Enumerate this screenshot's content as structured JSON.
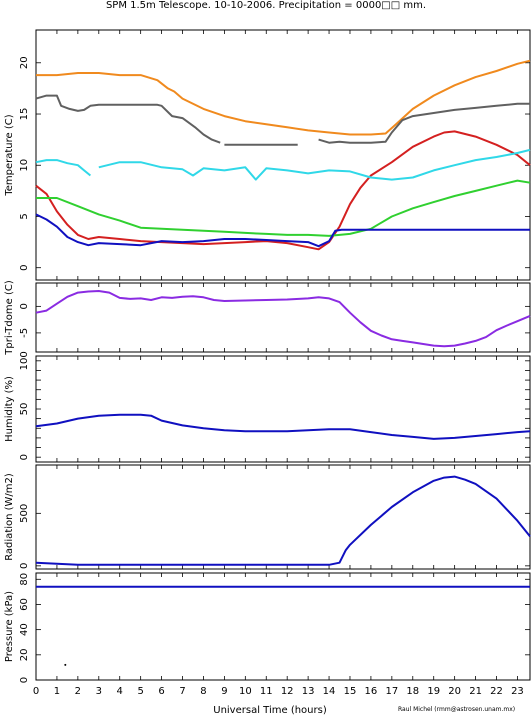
{
  "title": "SPM 1.5m Telescope. 10-10-2006. Precipitation = 0000□□ mm.",
  "xlabel": "Universal Time (hours)",
  "credit": "Raul Michel (rmm@astrosen.unam.mx)",
  "x_ticks": [
    0,
    1,
    2,
    3,
    4,
    5,
    6,
    7,
    8,
    9,
    10,
    11,
    12,
    13,
    14,
    15,
    16,
    17,
    18,
    19,
    20,
    21,
    22,
    23
  ],
  "xlim": [
    0,
    23.6
  ],
  "chart_data": [
    {
      "type": "line",
      "ylabel": "Temperature (C)",
      "ylim": [
        -1.2,
        23.2
      ],
      "yticks": [
        0,
        5,
        10,
        15,
        20
      ],
      "series": [
        {
          "color": "#f08a1e",
          "x": [
            0,
            1,
            2,
            3,
            4,
            5,
            5.8,
            6.3,
            6.6,
            7,
            8,
            9,
            10,
            11,
            12,
            13,
            14,
            15,
            16,
            16.7,
            17.2,
            18,
            19,
            20,
            21,
            22,
            23,
            23.6
          ],
          "y": [
            18.8,
            18.8,
            19,
            19,
            18.8,
            18.8,
            18.3,
            17.5,
            17.2,
            16.5,
            15.5,
            14.8,
            14.3,
            14,
            13.7,
            13.4,
            13.2,
            13,
            13,
            13.1,
            14,
            15.5,
            16.8,
            17.8,
            18.6,
            19.2,
            19.9,
            20.2
          ]
        },
        {
          "color": "#606060",
          "x": [
            0,
            0.5,
            1,
            1.2,
            1.6,
            2,
            2.3,
            2.6,
            3,
            4,
            5,
            5.8,
            6,
            6.5,
            7,
            7.6,
            8,
            8.4,
            8.8,
            9,
            10,
            11,
            12,
            12.5,
            13,
            13.5,
            14,
            14.5,
            15,
            16,
            16.7,
            17,
            17.5,
            18,
            19,
            20,
            21,
            22,
            23,
            23.6
          ],
          "y": [
            16.5,
            16.8,
            16.8,
            15.8,
            15.5,
            15.3,
            15.4,
            15.8,
            15.9,
            15.9,
            15.9,
            15.9,
            15.8,
            14.8,
            14.6,
            13.7,
            13,
            12.5,
            12.2,
            12,
            12,
            12,
            12,
            12,
            12,
            12.5,
            12.2,
            12.3,
            12.2,
            12.2,
            12.3,
            13.2,
            14.4,
            14.8,
            15.1,
            15.4,
            15.6,
            15.8,
            16,
            16
          ],
          "gaps": [
            [
              8.8,
              9.0
            ],
            [
              12.5,
              13.5
            ]
          ]
        },
        {
          "color": "#d42020",
          "x": [
            0,
            0.5,
            1,
            1.5,
            2,
            2.5,
            3,
            4,
            5,
            6,
            7,
            8,
            9,
            10,
            11,
            12,
            13,
            13.5,
            14,
            14.5,
            15,
            15.5,
            16,
            17,
            18,
            19,
            19.5,
            20,
            21,
            22,
            23,
            23.6
          ],
          "y": [
            8,
            7.2,
            5.5,
            4.2,
            3.2,
            2.8,
            3,
            2.8,
            2.6,
            2.5,
            2.4,
            2.3,
            2.4,
            2.5,
            2.6,
            2.4,
            2,
            1.8,
            2.5,
            4,
            6.2,
            7.8,
            9,
            10.3,
            11.8,
            12.8,
            13.2,
            13.3,
            12.8,
            12,
            11,
            10
          ]
        },
        {
          "color": "#30d030",
          "x": [
            0,
            1,
            2,
            3,
            4,
            5,
            6,
            7,
            8,
            9,
            10,
            11,
            12,
            13,
            14,
            15,
            16,
            17,
            18,
            19,
            20,
            21,
            22,
            23,
            23.6
          ],
          "y": [
            6.8,
            6.8,
            6,
            5.2,
            4.6,
            3.9,
            3.8,
            3.7,
            3.6,
            3.5,
            3.4,
            3.3,
            3.2,
            3.2,
            3.1,
            3.3,
            3.8,
            5,
            5.8,
            6.4,
            7,
            7.5,
            8,
            8.5,
            8.3
          ]
        },
        {
          "color": "#1010c0",
          "x": [
            0,
            0.5,
            1,
            1.5,
            2,
            2.5,
            3,
            4,
            5,
            6,
            7,
            8,
            9,
            10,
            11,
            12,
            13,
            13.5,
            14,
            14.3,
            14.6,
            15,
            16,
            17,
            18,
            19,
            20,
            21,
            22,
            23,
            23.6
          ],
          "y": [
            5.2,
            4.7,
            4,
            3,
            2.5,
            2.2,
            2.4,
            2.3,
            2.2,
            2.6,
            2.5,
            2.6,
            2.8,
            2.8,
            2.7,
            2.6,
            2.5,
            2.1,
            2.6,
            3.6,
            3.7,
            3.7,
            3.7,
            3.7,
            3.7,
            3.7,
            3.7,
            3.7,
            3.7,
            3.7,
            3.7
          ]
        },
        {
          "color": "#30d8e8",
          "x": [
            0,
            0.5,
            1,
            1.5,
            2,
            2.3,
            2.6,
            3,
            4,
            5,
            6,
            7,
            7.5,
            8,
            9,
            10,
            10.5,
            11,
            12,
            13,
            14,
            15,
            16,
            17,
            18,
            19,
            20,
            21,
            22,
            23,
            23.6
          ],
          "y": [
            10.3,
            10.5,
            10.5,
            10.2,
            10,
            9.5,
            9,
            9.8,
            10.3,
            10.3,
            9.8,
            9.6,
            9,
            9.7,
            9.5,
            9.8,
            8.6,
            9.7,
            9.5,
            9.2,
            9.5,
            9.4,
            8.8,
            8.6,
            8.8,
            9.5,
            10,
            10.5,
            10.8,
            11.2,
            11.5
          ],
          "gaps": [
            [
              2.6,
              3.0
            ]
          ]
        }
      ]
    },
    {
      "type": "line",
      "ylabel": "Tpri-Tdome (C)",
      "ylim": [
        -8.6,
        4.4
      ],
      "yticks": [
        -5,
        0
      ],
      "series": [
        {
          "color": "#8a2be2",
          "x": [
            0,
            0.5,
            1,
            1.5,
            2,
            2.5,
            3,
            3.5,
            4,
            4.5,
            5,
            5.5,
            6,
            6.5,
            7,
            7.5,
            8,
            8.5,
            9,
            10,
            11,
            12,
            13,
            13.5,
            14,
            14.5,
            15,
            15.5,
            16,
            16.5,
            17,
            17.5,
            18,
            18.5,
            19,
            19.5,
            20,
            20.5,
            21,
            21.5,
            22,
            22.5,
            23,
            23.6
          ],
          "y": [
            -1.2,
            -0.8,
            0.5,
            1.8,
            2.6,
            2.8,
            2.9,
            2.6,
            1.6,
            1.4,
            1.5,
            1.2,
            1.7,
            1.6,
            1.8,
            1.9,
            1.7,
            1.2,
            1.0,
            1.1,
            1.2,
            1.3,
            1.5,
            1.7,
            1.5,
            0.8,
            -1.2,
            -3.0,
            -4.6,
            -5.5,
            -6.2,
            -6.5,
            -6.8,
            -7.1,
            -7.4,
            -7.5,
            -7.4,
            -7.0,
            -6.5,
            -5.8,
            -4.5,
            -3.6,
            -2.8,
            -1.8
          ]
        }
      ]
    },
    {
      "type": "line",
      "ylabel": "Humidity (%)",
      "ylim": [
        -5,
        105
      ],
      "yticks": [
        0,
        10,
        20,
        30,
        40,
        50,
        60,
        70,
        80,
        90,
        100
      ],
      "yticklabels_shown": [
        0,
        50,
        100
      ],
      "series": [
        {
          "color": "#1010c0",
          "x": [
            0,
            1,
            2,
            3,
            4,
            5,
            5.5,
            6,
            7,
            8,
            9,
            10,
            11,
            12,
            13,
            14,
            15,
            16,
            17,
            18,
            19,
            20,
            21,
            22,
            23,
            23.6
          ],
          "y": [
            32,
            35,
            40,
            43,
            44,
            44,
            43,
            38,
            33,
            30,
            28,
            27,
            27,
            27,
            28,
            29,
            29,
            26,
            23,
            21,
            19,
            20,
            22,
            24,
            26,
            27
          ]
        }
      ]
    },
    {
      "type": "line",
      "ylabel": "Radiation (W/m2)",
      "ylim": [
        -30,
        960
      ],
      "yticks": [
        0,
        500
      ],
      "series": [
        {
          "color": "#1010c0",
          "x": [
            0,
            1,
            2,
            3,
            4,
            5,
            6,
            7,
            8,
            9,
            10,
            11,
            12,
            13,
            14,
            14.5,
            14.8,
            15,
            16,
            17,
            18,
            19,
            19.5,
            20,
            20.5,
            21,
            22,
            23,
            23.6
          ],
          "y": [
            30,
            20,
            10,
            10,
            10,
            10,
            10,
            10,
            10,
            10,
            10,
            10,
            10,
            10,
            10,
            30,
            150,
            200,
            390,
            560,
            700,
            810,
            840,
            850,
            820,
            780,
            640,
            430,
            280
          ]
        }
      ]
    },
    {
      "type": "line",
      "ylabel": "Pressure (kPa)",
      "ylim": [
        0,
        85
      ],
      "yticks": [
        0,
        20,
        40,
        60,
        80
      ],
      "series": [
        {
          "color": "#1010c0",
          "x": [
            0,
            23.6
          ],
          "y": [
            74,
            74
          ]
        }
      ],
      "points": [
        {
          "x": 1.4,
          "y": 12
        }
      ]
    }
  ]
}
